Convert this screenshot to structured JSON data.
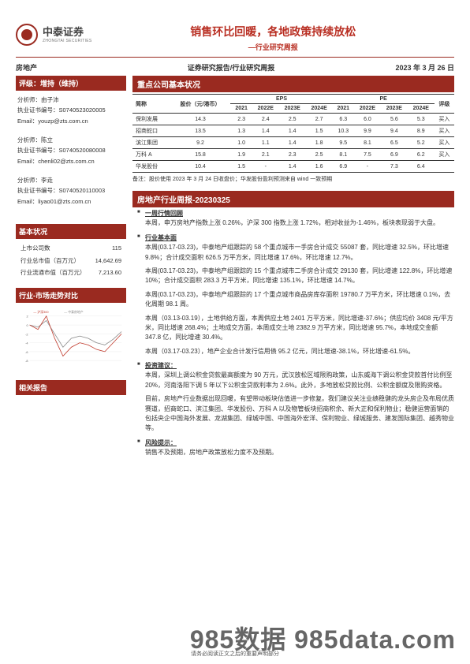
{
  "brand": {
    "cn": "中泰证券",
    "en": "ZHONGTAI SECURITIES"
  },
  "header": {
    "title": "销售环比回暖，各地政策持续放松",
    "subtitle": "—行业研究周报"
  },
  "meta": {
    "sector": "房地产",
    "center": "证券研究报告/行业研究周报",
    "date": "2023 年 3 月 26 日"
  },
  "rating": {
    "label": "评级：",
    "value": "增持（维持）"
  },
  "analysts": [
    {
      "name_label": "分析师：",
      "name": "由子沛",
      "lic_label": "执业证书编号：",
      "lic": "S0740523020005",
      "email_label": "Email：",
      "email": "youzp@zts.com.cn"
    },
    {
      "name_label": "分析师：",
      "name": "陈立",
      "lic_label": "执业证书编号：",
      "lic": "S0740520080008",
      "email_label": "Email：",
      "email": "chenli02@zts.com.cn"
    },
    {
      "name_label": "分析师：",
      "name": "李垚",
      "lic_label": "执业证书编号：",
      "lic": "S0740520110003",
      "email_label": "Email：",
      "email": "liyao01@zts.com.cn"
    }
  ],
  "basic": {
    "head": "基本状况",
    "rows": [
      {
        "k": "上市公司数",
        "v": "115"
      },
      {
        "k": "行业总市值（百万元）",
        "v": "14,642.69"
      },
      {
        "k": "行业流通市值（百万元）",
        "v": "7,213.60"
      }
    ]
  },
  "trend_head": "行业-市场走势对比",
  "related_head": "相关报告",
  "chart": {
    "type": "line",
    "legend": [
      "沪深300",
      "中泰房地产"
    ],
    "xticks": [
      1,
      2,
      3,
      4,
      5,
      6,
      7,
      8,
      9,
      10,
      11,
      12
    ],
    "yticks": [
      -8,
      -6,
      -4,
      -2,
      0,
      2
    ],
    "series1_color": "#c0392b",
    "series2_color": "#888888",
    "series1": [
      0,
      -1,
      2,
      -3,
      -7,
      -5,
      -4,
      -4.5,
      -5.5,
      -6,
      -4,
      -2
    ],
    "series2": [
      0,
      -0.5,
      1,
      -2,
      -5,
      -3,
      -2.5,
      -3,
      -4,
      -4.5,
      -3.2,
      -1.5
    ],
    "grid_color": "#dddddd",
    "bg": "#ffffff"
  },
  "table_head": "重点公司基本状况",
  "table": {
    "head_top": [
      "简称",
      "股价（元/港币）",
      "EPS",
      "PE",
      "评级"
    ],
    "head_sub": [
      "2021",
      "2022E",
      "2023E",
      "2024E",
      "2021",
      "2022E",
      "2023E",
      "2024E"
    ],
    "rows": [
      {
        "name": "保利发展",
        "price": "14.3",
        "eps": [
          "2.3",
          "2.4",
          "2.5",
          "2.7"
        ],
        "pe": [
          "6.3",
          "6.0",
          "5.6",
          "5.3"
        ],
        "rating": "买入"
      },
      {
        "name": "招商蛇口",
        "price": "13.5",
        "eps": [
          "1.3",
          "1.4",
          "1.4",
          "1.5"
        ],
        "pe": [
          "10.3",
          "9.9",
          "9.4",
          "8.9"
        ],
        "rating": "买入"
      },
      {
        "name": "滨江集团",
        "price": "9.2",
        "eps": [
          "1.0",
          "1.1",
          "1.4",
          "1.8"
        ],
        "pe": [
          "9.5",
          "8.1",
          "6.5",
          "5.2"
        ],
        "rating": "买入"
      },
      {
        "name": "万科 A",
        "price": "15.8",
        "eps": [
          "1.9",
          "2.1",
          "2.3",
          "2.5"
        ],
        "pe": [
          "8.1",
          "7.5",
          "6.9",
          "6.2"
        ],
        "rating": "买入"
      },
      {
        "name": "华发股份",
        "price": "10.4",
        "eps": [
          "1.5",
          "-",
          "1.4",
          "1.6"
        ],
        "pe": [
          "6.9",
          "-",
          "7.3",
          "6.4"
        ],
        "rating": ""
      }
    ],
    "note": "备注：股价使用 2023 年 3 月 24 日收盘价；华发股份盈利预测来自 wind 一致预期"
  },
  "weekly_head": "房地产行业周报-20230325",
  "sections": [
    {
      "h": "一周行情回顾",
      "paras": [
        "本周，申万房地产指数上涨 0.26%，沪深 300 指数上涨 1.72%，相对收益为-1.46%，板块表现弱于大盘。"
      ]
    },
    {
      "h": "行业基本面",
      "paras": [
        "本周(03.17-03.23)，中泰地产组跟踪的 58 个重点城市一手房合计成交 55087 套，同比增速 32.5%，环比增速 9.8%；合计成交面积 626.5 万平方米，同比增速 17.6%，环比增速 12.7%。",
        "本周(03.17-03.23)，中泰地产组跟踪的 15 个重点城市二手房合计成交 29130 套，同比增速 122.8%，环比增速 10%；合计成交面积 283.3 万平方米，同比增速 135.1%，环比增速 14.7%。",
        "本周(03.17-03.23)，中泰地产组跟踪的 17 个重点城市商品房库存面积 19780.7 万平方米，环比增速 0.1%，去化周期 98.1 周。",
        "本周（03.13-03.19），土地供给方面，本周供应土地 2401 万平方米，同比增速-37.6%；供应均价 3408 元/平方米，同比增速 268.4%；土地成交方面，本周成交土地 2382.9 万平方米，同比增速 95.7%，本地成交金额 347.8 亿，同比增速 30.4%。",
        "本周（03.17-03.23），地产企业合计发行信用债 95.2 亿元，同比增速-38.1%，环比增速-61.5%。"
      ]
    },
    {
      "h": "投资建议：",
      "paras": [
        "本周，深圳上调公积金贷款最高额度为 90 万元，武汉放松区域限购政策，山东威海下调公积金贷款首付比例至 20%，河南洛阳下调 5 年以下公积金贷款利率为 2.6%。此外，多地放松贷款比例、公积金额度及限购资格。",
        "目前，房地产行业数据出现回暖，有望带动板块估值进一步修复。我们建议关注业绩稳健的龙头房企及布局优质赛道，招商蛇口、滨江集团、华发股份、万科 A 以及物管板块招商积余、新大正和保利物业；稳健运营面销的包括央企中国海外发展、龙湖集团、绿城中国、中国海外宏洋、保利物业、绿城服务、建发国际集团、越秀物业等。"
      ]
    },
    {
      "h": "风险提示：",
      "paras": [
        "销售不及预期，房地产政策放松力度不及预期。"
      ]
    }
  ],
  "disclaimer": "请务必阅读正文之后的重要声明部分",
  "watermark": {
    "big": "985数据 985data.com"
  }
}
